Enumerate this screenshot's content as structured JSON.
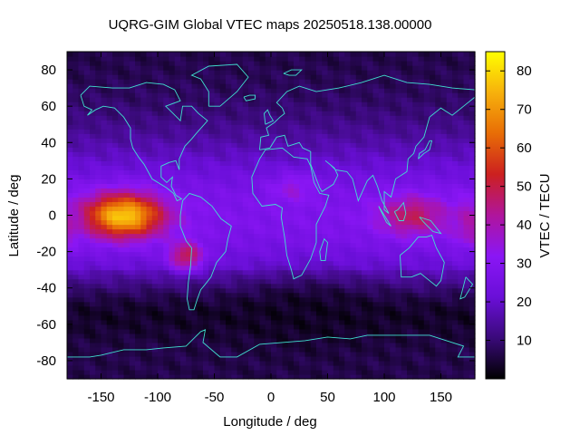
{
  "chart_data": {
    "type": "heatmap",
    "title": "UQRG-GIM Global VTEC maps 20250518.138.00000",
    "xlabel": "Longitude / deg",
    "ylabel": "Latitude / deg",
    "colorbar_label": "VTEC / TECU",
    "xlim": [
      -180,
      180
    ],
    "ylim": [
      -90,
      90
    ],
    "color_range": [
      0,
      85
    ],
    "x_ticks": [
      -150,
      -100,
      -50,
      0,
      50,
      100,
      150
    ],
    "y_ticks": [
      -80,
      -60,
      -40,
      -20,
      0,
      20,
      40,
      60,
      80
    ],
    "colorbar_ticks": [
      10,
      20,
      30,
      40,
      50,
      60,
      70,
      80
    ],
    "colormap": [
      "#000000",
      "#3a0a7a",
      "#6a0fd8",
      "#8a16f5",
      "#b0159c",
      "#cc2020",
      "#e86d06",
      "#f7b10c",
      "#ffff00"
    ],
    "coastline_color": "#40e0d0",
    "features": [
      {
        "name": "equatorial-anomaly-pacific",
        "lon": -130,
        "lat": 0,
        "peak": 78,
        "spread_lon": 35,
        "spread_lat": 12
      },
      {
        "name": "equatorial-anomaly-indonesia",
        "lon": 125,
        "lat": 0,
        "peak": 48,
        "spread_lon": 30,
        "spread_lat": 11
      },
      {
        "name": "equatorial-anomaly-east",
        "lon": 175,
        "lat": -5,
        "peak": 40,
        "spread_lon": 15,
        "spread_lat": 12
      },
      {
        "name": "south-america-crest",
        "lon": -75,
        "lat": -22,
        "peak": 50,
        "spread_lon": 15,
        "spread_lat": 8
      },
      {
        "name": "africa-crest",
        "lon": 20,
        "lat": 15,
        "peak": 35,
        "spread_lon": 20,
        "spread_lat": 8
      },
      {
        "name": "south-atlantic-low",
        "lon": 30,
        "lat": -55,
        "peak": 3,
        "spread_lon": 60,
        "spread_lat": 18
      }
    ]
  }
}
